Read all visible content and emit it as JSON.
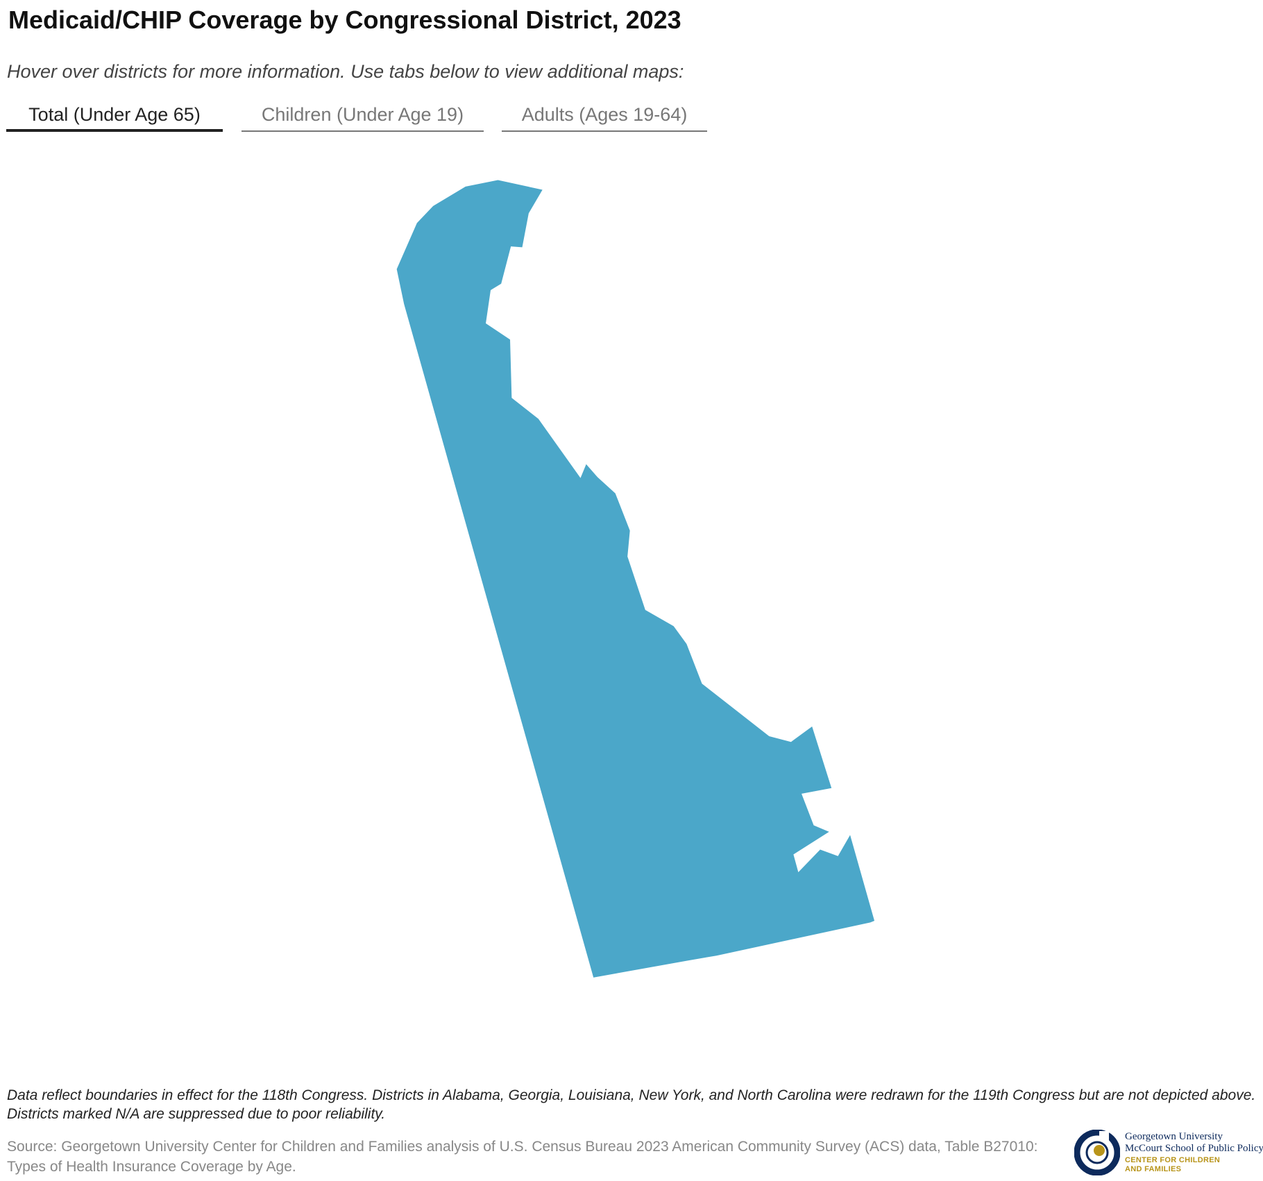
{
  "header": {
    "title": "Medicaid/CHIP Coverage by Congressional District, 2023",
    "subtitle": "Hover over districts for more information. Use tabs below to view additional maps:"
  },
  "tabs": [
    "Total (Under Age 65)",
    "Children (Under Age 19)",
    "Adults (Ages 19-64)"
  ],
  "footer": {
    "note": "Data reflect boundaries in effect for the 118th Congress. Districts in Alabama, Georgia, Louisiana, New York, and North Carolina were redrawn for the 119th Congress but are not depicted above. Districts marked N/A are suppressed due to poor reliability.",
    "source": "Source: Georgetown University Center for Children and Families analysis of U.S. Census Bureau 2023 American Community Survey (ACS) data, Table B27010: Types of Health Insurance Coverage by Age."
  },
  "logo": {
    "line1": "Georgetown University",
    "line2": "McCourt School of Public Policy",
    "line3": "CENTER FOR CHILDREN",
    "line4": "AND FAMILIES"
  }
}
